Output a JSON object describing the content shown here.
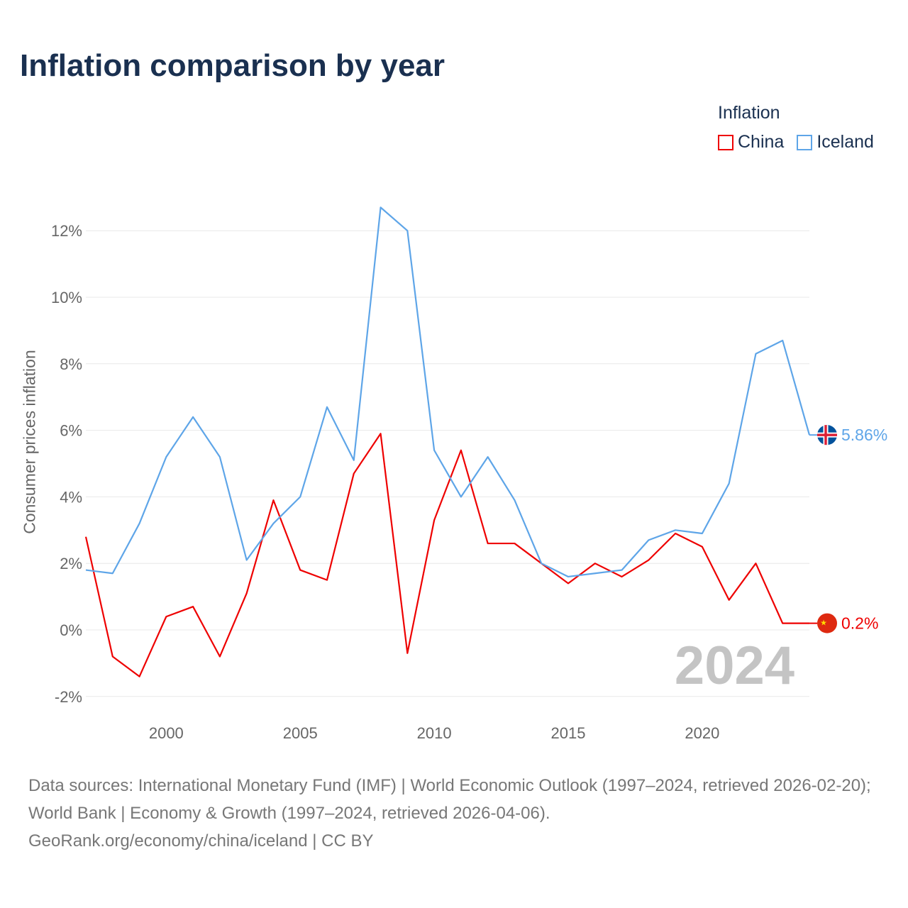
{
  "chart_data": {
    "type": "line",
    "title": "Inflation comparison by year",
    "xlabel": "",
    "ylabel": "Consumer prices inflation",
    "legend_title": "Inflation",
    "legend_position": "top-right",
    "x": [
      1997,
      1998,
      1999,
      2000,
      2001,
      2002,
      2003,
      2004,
      2005,
      2006,
      2007,
      2008,
      2009,
      2010,
      2011,
      2012,
      2013,
      2014,
      2015,
      2016,
      2017,
      2018,
      2019,
      2020,
      2021,
      2022,
      2023,
      2024
    ],
    "xlim": [
      1997,
      2024
    ],
    "ylim": [
      -2.6,
      13.6
    ],
    "x_ticks": [
      2000,
      2005,
      2010,
      2015,
      2020
    ],
    "x_tick_labels": [
      "2000",
      "2005",
      "2010",
      "2015",
      "2020"
    ],
    "y_ticks": [
      -2,
      0,
      2,
      4,
      6,
      8,
      10,
      12
    ],
    "y_tick_labels": [
      "-2%",
      "0%",
      "2%",
      "4%",
      "6%",
      "8%",
      "10%",
      "12%"
    ],
    "grid": true,
    "watermark_year": "2024",
    "series": [
      {
        "name": "China",
        "color": "#ee0000",
        "end_label": "0.2%",
        "values": [
          2.8,
          -0.8,
          -1.4,
          0.4,
          0.7,
          -0.8,
          1.1,
          3.9,
          1.8,
          1.5,
          4.7,
          5.9,
          -0.7,
          3.3,
          5.4,
          2.6,
          2.6,
          2.0,
          1.4,
          2.0,
          1.6,
          2.1,
          2.9,
          2.5,
          0.9,
          2.0,
          0.2,
          0.2
        ]
      },
      {
        "name": "Iceland",
        "color": "#5ea5e8",
        "end_label": "5.86%",
        "values": [
          1.8,
          1.7,
          3.2,
          5.2,
          6.4,
          5.2,
          2.1,
          3.2,
          4.0,
          6.7,
          5.1,
          12.7,
          12.0,
          5.4,
          4.0,
          5.2,
          3.9,
          2.0,
          1.6,
          1.7,
          1.8,
          2.7,
          3.0,
          2.9,
          4.4,
          8.3,
          8.7,
          5.86
        ]
      }
    ]
  },
  "footer": {
    "sources": "Data sources: International Monetary Fund (IMF) | World Economic Outlook (1997–2024, retrieved 2026-02-20); World Bank | Economy & Growth (1997–2024, retrieved 2026-04-06).",
    "link": "GeoRank.org/economy/china/iceland | CC BY"
  }
}
